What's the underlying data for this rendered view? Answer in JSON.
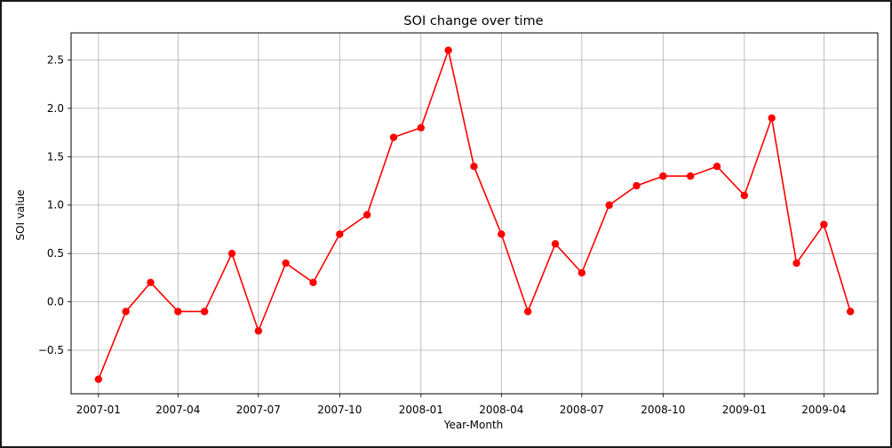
{
  "chart_data": {
    "type": "line",
    "title": "SOI change over time",
    "xlabel": "Year-Month",
    "ylabel": "SOI value",
    "x": [
      "2007-01",
      "2007-02",
      "2007-03",
      "2007-04",
      "2007-05",
      "2007-06",
      "2007-07",
      "2007-08",
      "2007-09",
      "2007-10",
      "2007-11",
      "2007-12",
      "2008-01",
      "2008-02",
      "2008-03",
      "2008-04",
      "2008-05",
      "2008-06",
      "2008-07",
      "2008-08",
      "2008-09",
      "2008-10",
      "2008-11",
      "2008-12",
      "2009-01",
      "2009-02",
      "2009-03",
      "2009-04",
      "2009-05"
    ],
    "series": [
      {
        "color": "#ff0000",
        "marker": "circle",
        "values": [
          -0.8,
          -0.1,
          0.2,
          -0.1,
          -0.1,
          0.5,
          -0.3,
          0.4,
          0.2,
          0.7,
          0.9,
          1.7,
          1.8,
          2.6,
          1.4,
          0.7,
          -0.1,
          0.6,
          0.3,
          1.0,
          1.2,
          1.3,
          1.3,
          1.4,
          1.1,
          1.9,
          0.4,
          0.8,
          -0.1
        ]
      }
    ],
    "ylim": [
      -0.95,
      2.78
    ],
    "xlim": [
      "2006-12-01",
      "2009-06-01"
    ],
    "x_ticks": [
      "2007-01",
      "2007-04",
      "2007-07",
      "2007-10",
      "2008-01",
      "2008-04",
      "2008-07",
      "2008-10",
      "2009-01",
      "2009-04"
    ],
    "y_ticks": [
      -0.5,
      0.0,
      0.5,
      1.0,
      1.5,
      2.0,
      2.5
    ],
    "y_tick_labels": [
      "−0.5",
      "0.0",
      "0.5",
      "1.0",
      "1.5",
      "2.0",
      "2.5"
    ],
    "grid": true,
    "grid_color": "#b0b0b0",
    "legend": "none"
  }
}
